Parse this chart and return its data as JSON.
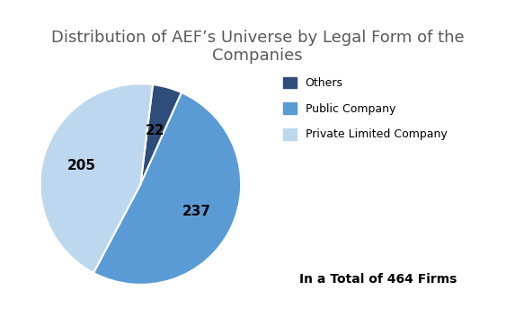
{
  "title": "Distribution of AEF’s Universe by Legal Form of the\nCompanies",
  "slices": [
    22,
    237,
    205
  ],
  "colors": [
    "#2E4D7B",
    "#5B9BD5",
    "#BDD7EE"
  ],
  "autopct_labels": [
    "22",
    "237",
    "205"
  ],
  "legend_labels": [
    "Others",
    "Public Company",
    "Private Limited Company"
  ],
  "annotation": "In a Total of 464 Firms",
  "startangle": 83,
  "background_color": "#ffffff",
  "title_fontsize": 13,
  "label_fontsize": 11,
  "annotation_fontsize": 10,
  "legend_fontsize": 9,
  "title_color": "#595959"
}
